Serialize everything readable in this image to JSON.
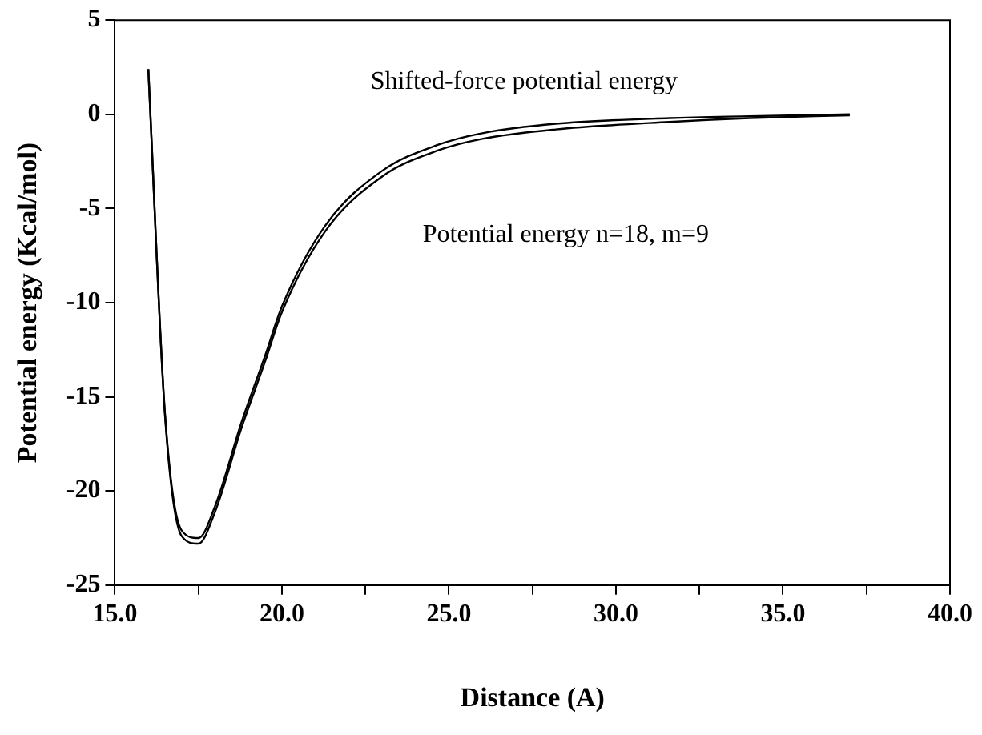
{
  "chart_data": {
    "type": "line",
    "xlabel": "Distance (A)",
    "ylabel": "Potential energy (Kcal/mol)",
    "series": [
      {
        "name": "Shifted-force potential energy",
        "color": "#000000",
        "x": [
          16,
          16.5,
          17,
          17.5,
          18,
          18.8,
          19.5,
          20,
          21.3,
          23,
          24.7,
          26,
          28.2,
          31.6,
          34,
          37
        ],
        "values": [
          2.4,
          -15.9,
          -22.1,
          -22.5,
          -20.8,
          -16.3,
          -12.8,
          -10.2,
          -5.9,
          -3.0,
          -1.6,
          -1.0,
          -0.5,
          -0.2,
          -0.1,
          0
        ]
      },
      {
        "name": "Potential energy n=18, m=9",
        "color": "#000000",
        "x": [
          16,
          16.5,
          17,
          17.5,
          18,
          18.8,
          19.5,
          20,
          21.3,
          23,
          24.7,
          26,
          28.2,
          31.6,
          34,
          37
        ],
        "values": [
          2.4,
          -16.0,
          -22.4,
          -22.8,
          -21.1,
          -16.6,
          -13.1,
          -10.5,
          -6.2,
          -3.3,
          -1.9,
          -1.3,
          -0.8,
          -0.4,
          -0.2,
          -0.05
        ]
      }
    ],
    "xlim": [
      15,
      40
    ],
    "xticks": [
      {
        "value": 15,
        "label": "15.0"
      },
      {
        "value": 17.5,
        "label": null
      },
      {
        "value": 20,
        "label": "20.0"
      },
      {
        "value": 22.5,
        "label": null
      },
      {
        "value": 25,
        "label": "25.0"
      },
      {
        "value": 27.5,
        "label": null
      },
      {
        "value": 30,
        "label": "30.0"
      },
      {
        "value": 32.5,
        "label": null
      },
      {
        "value": 35,
        "label": "35.0"
      },
      {
        "value": 37.5,
        "label": null
      },
      {
        "value": 40,
        "label": "40.0"
      }
    ],
    "ylim": [
      -25,
      5
    ],
    "yticks": [
      -25,
      -20,
      -15,
      -10,
      -5,
      0,
      5
    ],
    "grid": false,
    "marker": "none",
    "line_style": "solid"
  }
}
